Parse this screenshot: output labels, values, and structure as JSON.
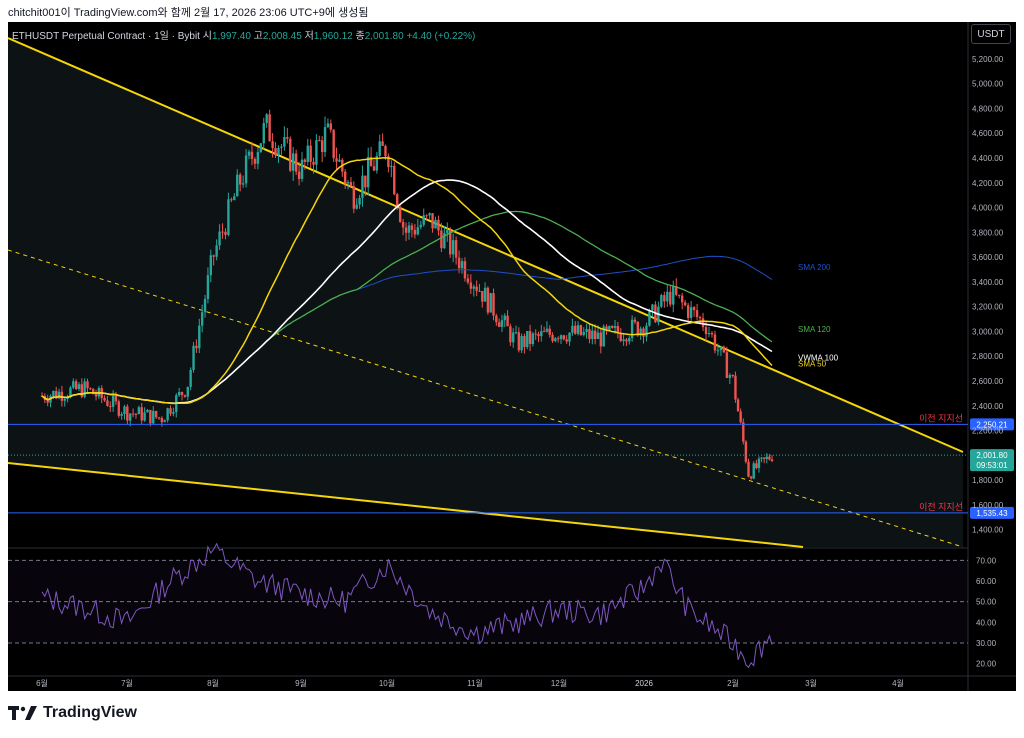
{
  "caption": "chitchit001이 TradingView.com와 함께 2월 17, 2026 23:06 UTC+9에 생성됨",
  "brand": "TradingView",
  "header": {
    "symbol": "ETHUSDT Perpetual Contract · 1일 · Bybit",
    "o_label": "시",
    "o": "1,997.40",
    "h_label": "고",
    "h": "2,008.45",
    "l_label": "저",
    "l": "1,960.12",
    "c_label": "종",
    "c": "2,001.80",
    "change": "+4.40 (+0.22%)"
  },
  "currency_button": "USDT",
  "colors": {
    "up": "#26a69a",
    "down": "#ef5350",
    "channel": "#f5d60a",
    "sma200": "#1e50c8",
    "sma120": "#4caf50",
    "vwma100": "#ffffff",
    "sma50": "#f5d60a",
    "rsi": "#7e57c2",
    "support_line": "#2962ff",
    "label_red": "#f23645"
  },
  "chart_data": [
    {
      "type": "candlestick",
      "title": "ETHUSDT Perpetual Contract · 1일 · Bybit",
      "xlabel": "",
      "ylabel": "USDT",
      "x_ticks": [
        "6월",
        "7월",
        "8월",
        "9월",
        "10월",
        "11월",
        "12월",
        "2026",
        "2월",
        "3월",
        "4월"
      ],
      "y_ticks": [
        "1,400.00",
        "1,600.00",
        "1,800.00",
        "2,000.00",
        "2,200.00",
        "2,400.00",
        "2,600.00",
        "2,800.00",
        "3,000.00",
        "3,200.00",
        "3,400.00",
        "3,600.00",
        "3,800.00",
        "4,000.00",
        "4,200.00",
        "4,400.00",
        "4,600.00",
        "4,800.00",
        "5,000.00",
        "5,200.00"
      ],
      "ylim": [
        1260,
        5320
      ],
      "monthly_path_x": [
        0,
        0.5,
        1,
        1.4,
        1.7,
        2,
        2.3,
        2.6,
        3,
        3.3,
        3.6,
        4,
        4.2,
        4.5,
        5,
        5.5,
        6,
        6.5,
        7,
        7.3,
        7.7,
        8,
        8.2,
        8.5
      ],
      "monthly_path_close": [
        2480,
        2540,
        2350,
        2300,
        2560,
        3600,
        4200,
        4650,
        4300,
        4600,
        4100,
        4500,
        3800,
        3900,
        3400,
        2900,
        3000,
        2950,
        3050,
        3300,
        3050,
        2600,
        1850,
        2001.8
      ],
      "series": [
        {
          "name": "SMA 200",
          "last": 3520
        },
        {
          "name": "SMA 120",
          "last": 3020
        },
        {
          "name": "VWMA 100",
          "last": 2790
        },
        {
          "name": "SMA 50",
          "last": 2740
        }
      ],
      "horizontal_levels": [
        {
          "label": "이전 지지선",
          "value": 2250.21,
          "tag": "2,250.21"
        },
        {
          "label": "이전 지지선",
          "value": 1535.43,
          "tag": "1,535.43"
        }
      ],
      "last_price": {
        "value": 2001.8,
        "tag": "2,001.80",
        "countdown": "09:53:01"
      }
    },
    {
      "type": "line",
      "title": "",
      "y_ticks": [
        "20.00",
        "30.00",
        "40.00",
        "50.00",
        "60.00",
        "70.00"
      ],
      "ylim": [
        15,
        75
      ],
      "levels": [
        70,
        50,
        30
      ],
      "series": [
        {
          "name": "",
          "monthly_x": [
            0,
            0.5,
            1,
            1.5,
            2,
            2.5,
            3,
            3.5,
            4,
            4.5,
            5,
            5.5,
            6,
            6.5,
            7,
            7.2,
            7.5,
            8,
            8.2,
            8.5
          ],
          "values": [
            52,
            47,
            40,
            60,
            75,
            60,
            54,
            50,
            68,
            45,
            35,
            40,
            46,
            44,
            57,
            70,
            46,
            30,
            22,
            34
          ]
        }
      ]
    }
  ]
}
